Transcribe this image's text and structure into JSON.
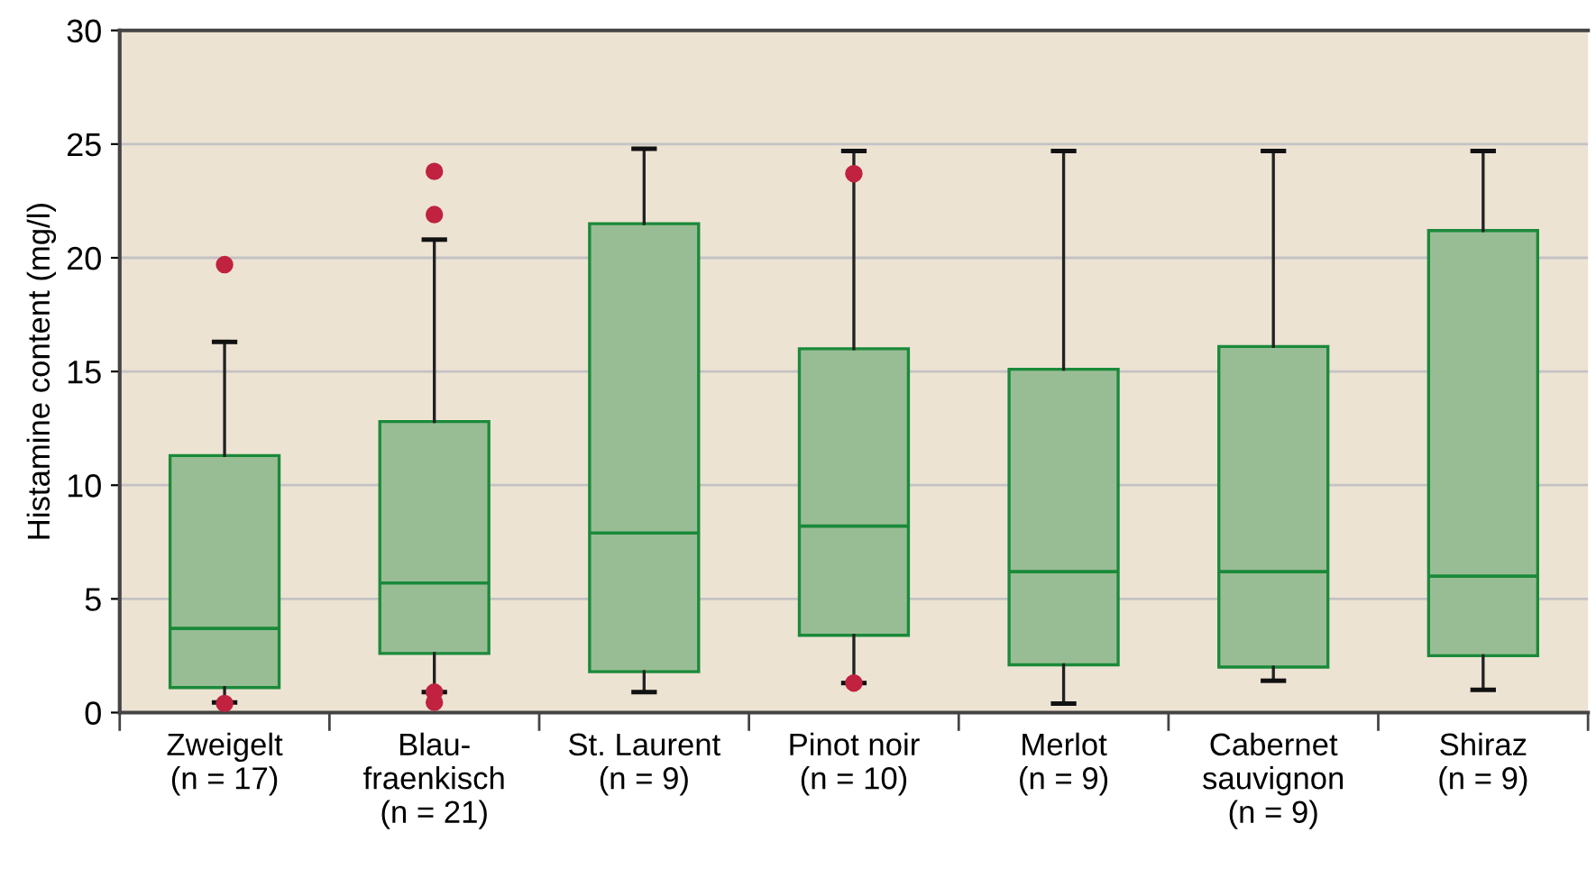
{
  "chart_data": {
    "type": "box",
    "ylabel": "Histamine content (mg/l)",
    "categories": [
      "Zweigelt\n(n = 17)",
      "Blau-\nfraenkisch\n(n = 21)",
      "St. Laurent\n(n = 9)",
      "Pinot noir\n(n = 10)",
      "Merlot\n(n = 9)",
      "Cabernet\nsauvignon\n(n = 9)",
      "Shiraz\n(n = 9)"
    ],
    "series": [
      {
        "color": "#98bd94",
        "boxes": [
          {
            "low": 0.45,
            "q1": 1.1,
            "median": 3.7,
            "q3": 11.3,
            "high": 16.3,
            "outliers": [
              19.7,
              0.4
            ]
          },
          {
            "low": 0.9,
            "q1": 2.6,
            "median": 5.7,
            "q3": 12.8,
            "high": 20.8,
            "outliers": [
              23.8,
              21.9,
              0.9,
              0.45
            ]
          },
          {
            "low": 0.9,
            "q1": 1.8,
            "median": 7.9,
            "q3": 21.5,
            "high": 24.8
          },
          {
            "low": 1.3,
            "q1": 3.4,
            "median": 8.2,
            "q3": 16.0,
            "high": 24.7,
            "outliers": [
              23.7,
              1.3
            ]
          },
          {
            "low": 0.4,
            "q1": 2.1,
            "median": 6.2,
            "q3": 15.1,
            "high": 24.7
          },
          {
            "low": 1.4,
            "q1": 2.0,
            "median": 6.2,
            "q3": 16.1,
            "high": 24.7
          },
          {
            "low": 1.0,
            "q1": 2.5,
            "median": 6.0,
            "q3": 21.2,
            "high": 24.7
          }
        ]
      }
    ],
    "ylim": [
      0,
      30
    ],
    "yticks": [
      0,
      5,
      10,
      15,
      20,
      25,
      30
    ],
    "grid": "y"
  }
}
